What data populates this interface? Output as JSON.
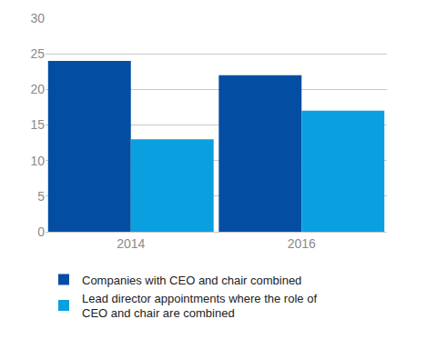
{
  "chart_data": {
    "type": "bar",
    "categories": [
      "2014",
      "2016"
    ],
    "series": [
      {
        "name": "Companies with CEO and chair combined",
        "color": "#034ea2",
        "values": [
          24,
          22
        ]
      },
      {
        "name": "Lead director appointments where the role of CEO and chair are combined",
        "color": "#0aa0e0",
        "values": [
          13,
          17
        ]
      }
    ],
    "ylim": [
      0,
      30
    ],
    "yticks": [
      0,
      5,
      10,
      15,
      20,
      25,
      30
    ],
    "grid": true,
    "legend": "bottom"
  }
}
